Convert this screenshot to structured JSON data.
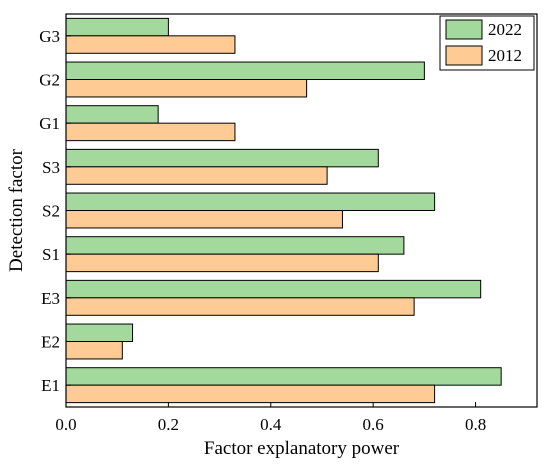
{
  "chart_data": {
    "type": "bar",
    "orientation": "horizontal",
    "categories": [
      "E1",
      "E2",
      "E3",
      "S1",
      "S2",
      "S3",
      "G1",
      "G2",
      "G3"
    ],
    "series": [
      {
        "name": "2022",
        "color": "#a3d99c",
        "values": [
          0.85,
          0.13,
          0.81,
          0.66,
          0.72,
          0.61,
          0.18,
          0.7,
          0.2
        ]
      },
      {
        "name": "2012",
        "color": "#fdcb93",
        "values": [
          0.72,
          0.11,
          0.68,
          0.61,
          0.54,
          0.51,
          0.33,
          0.47,
          0.33
        ]
      }
    ],
    "xlabel": "Factor explanatory power",
    "ylabel": "Detection factor",
    "xlim": [
      0,
      0.92
    ],
    "xticks": [
      0.0,
      0.2,
      0.4,
      0.6,
      0.8
    ],
    "xtick_labels": [
      "0.0",
      "0.2",
      "0.4",
      "0.6",
      "0.8"
    ],
    "grid": false,
    "legend_position": "top-right"
  }
}
